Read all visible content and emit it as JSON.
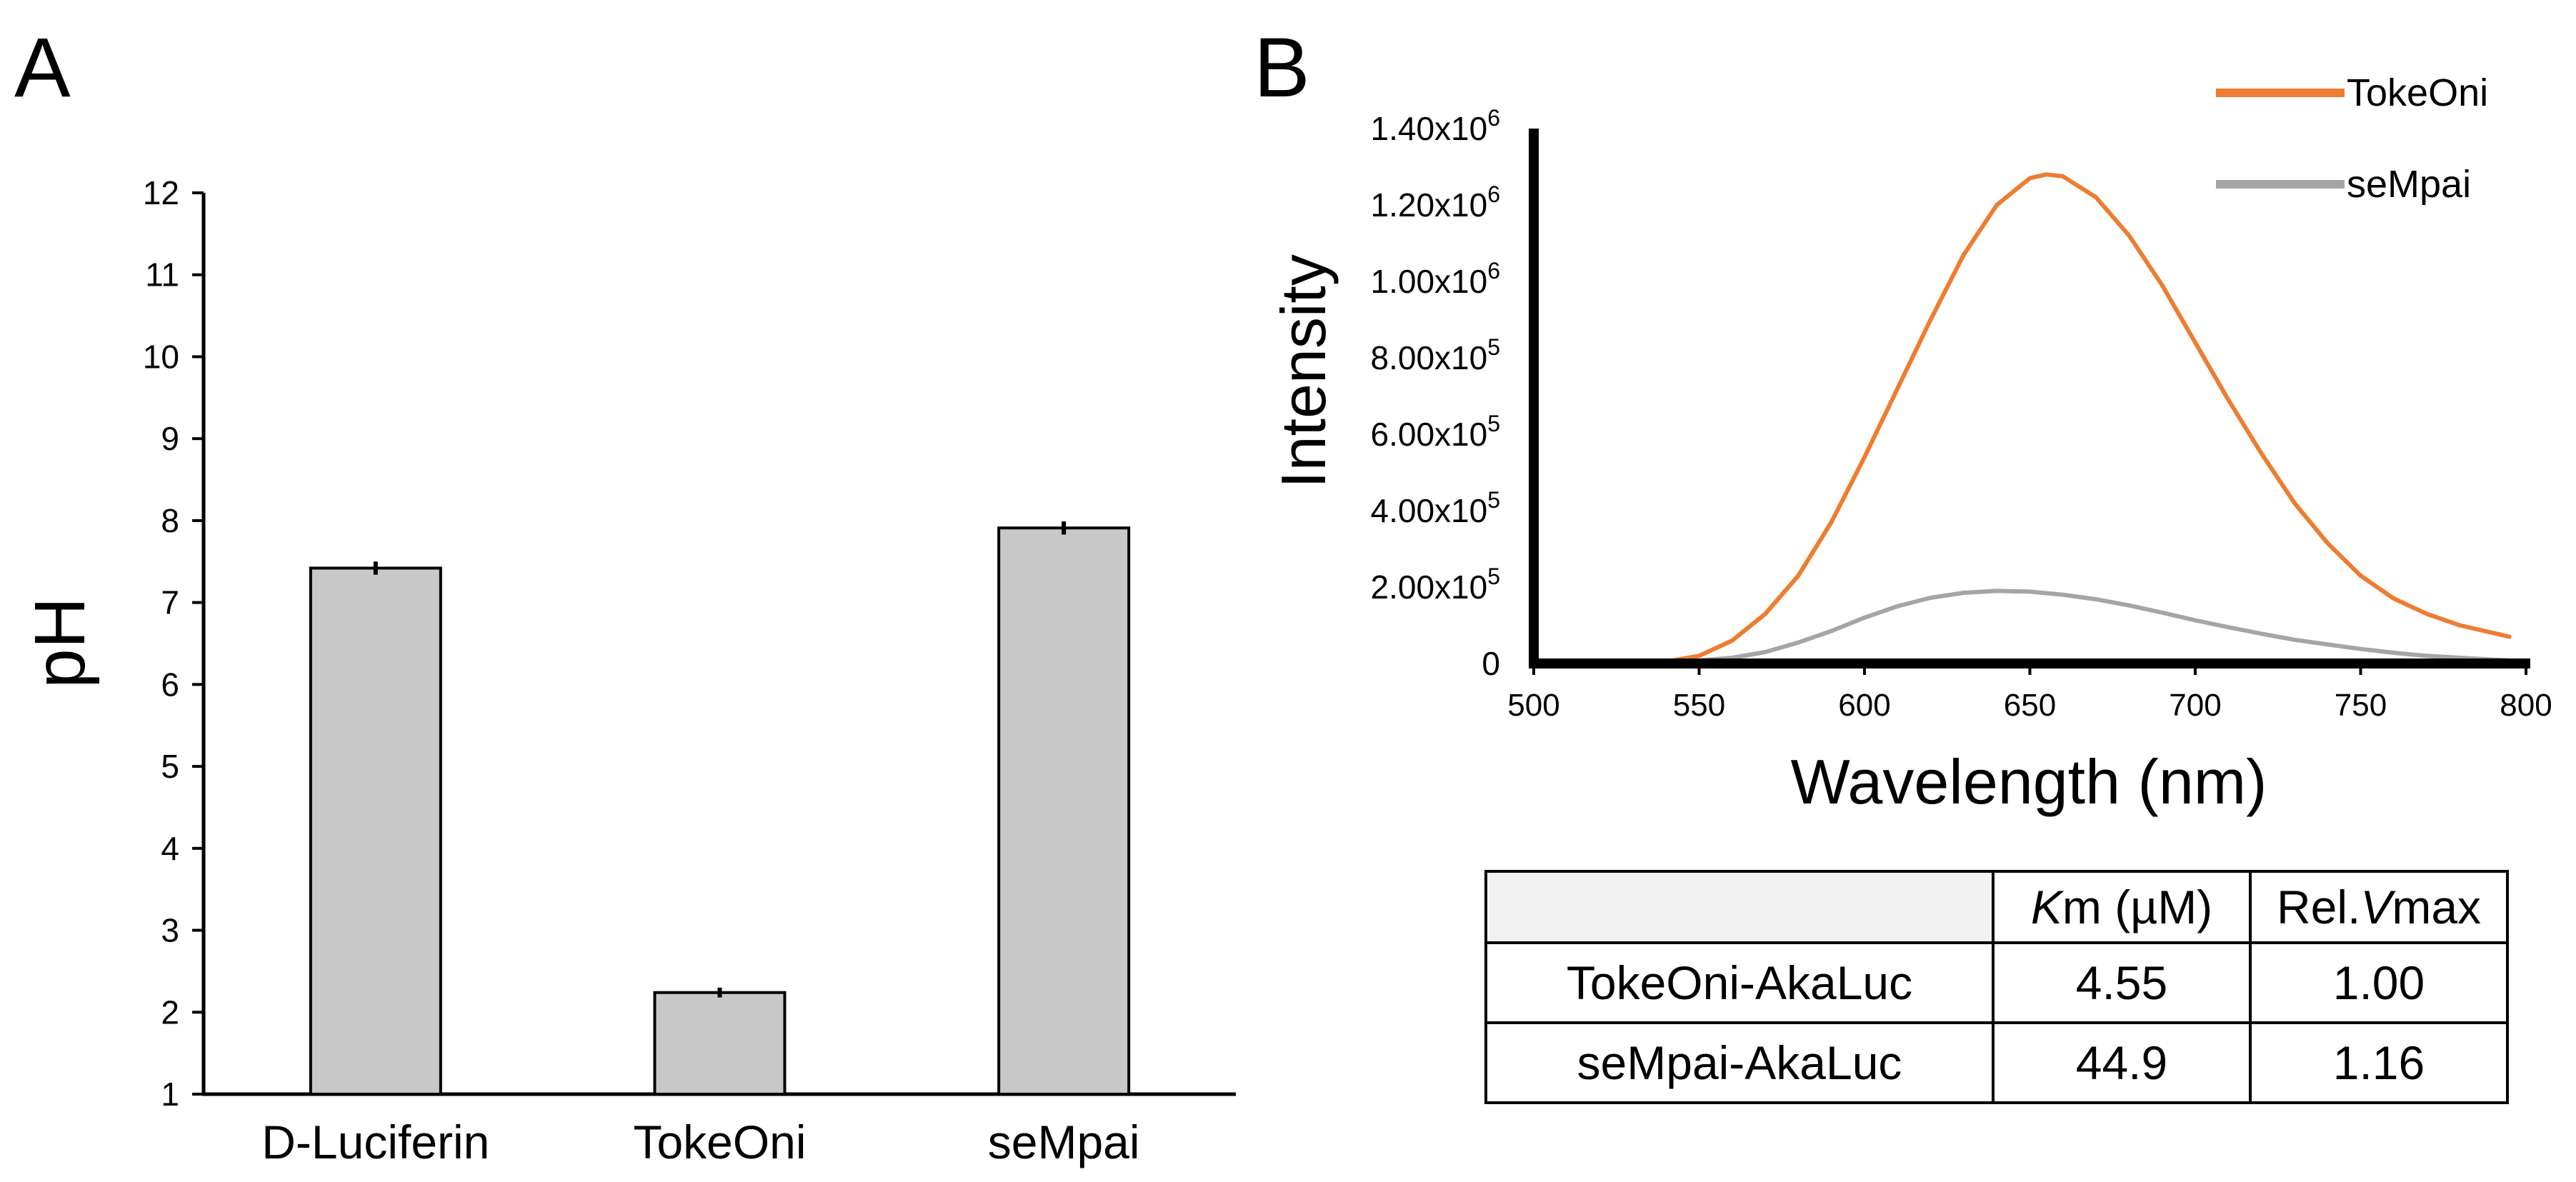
{
  "panel_labels": {
    "a": "A",
    "b": "B"
  },
  "colors": {
    "tokeoni": "#ED7D31",
    "sempai": "#A5A5A5",
    "bar_fill": "#c8c8c8",
    "axis": "#000000"
  },
  "chart_data": [
    {
      "id": "panel-a",
      "type": "bar",
      "title": "",
      "xlabel": "",
      "ylabel": "pH",
      "ylim": [
        1,
        12
      ],
      "yticks": [
        "1",
        "2",
        "3",
        "4",
        "5",
        "6",
        "7",
        "8",
        "9",
        "10",
        "11",
        "12"
      ],
      "categories": [
        "D-Luciferin",
        "TokeOni",
        "seMpai"
      ],
      "values": [
        7.42,
        2.24,
        7.91
      ],
      "errors": [
        0.08,
        0.06,
        0.08
      ],
      "grid": false
    },
    {
      "id": "panel-b",
      "type": "line",
      "title": "",
      "xlabel": "Wavelength (nm)",
      "ylabel": "Intensity",
      "xlim": [
        500,
        800
      ],
      "ylim": [
        0,
        1400000
      ],
      "xticks": [
        "500",
        "550",
        "600",
        "650",
        "700",
        "750",
        "800"
      ],
      "yticks": [
        {
          "base": "0",
          "exp": ""
        },
        {
          "base": "2.00x10",
          "exp": "5"
        },
        {
          "base": "4.00x10",
          "exp": "5"
        },
        {
          "base": "6.00x10",
          "exp": "5"
        },
        {
          "base": "8.00x10",
          "exp": "5"
        },
        {
          "base": "1.00x10",
          "exp": "6"
        },
        {
          "base": "1.20x10",
          "exp": "6"
        },
        {
          "base": "1.40x10",
          "exp": "6"
        }
      ],
      "legend_position": "top-right",
      "grid": false,
      "series": [
        {
          "name": "TokeOni",
          "color": "#ED7D31",
          "x": [
            500,
            520,
            540,
            550,
            560,
            570,
            580,
            590,
            600,
            610,
            620,
            630,
            640,
            650,
            655,
            660,
            670,
            680,
            690,
            700,
            710,
            720,
            730,
            740,
            750,
            760,
            770,
            780,
            790,
            795
          ],
          "y": [
            0,
            0,
            5000,
            20000,
            60000,
            130000,
            230000,
            370000,
            540000,
            720000,
            900000,
            1070000,
            1200000,
            1270000,
            1280000,
            1275000,
            1220000,
            1120000,
            990000,
            840000,
            690000,
            550000,
            420000,
            315000,
            230000,
            170000,
            130000,
            100000,
            80000,
            70000
          ]
        },
        {
          "name": "seMpai",
          "color": "#A5A5A5",
          "x": [
            500,
            520,
            540,
            550,
            560,
            570,
            580,
            590,
            600,
            610,
            620,
            630,
            640,
            650,
            660,
            670,
            680,
            690,
            700,
            710,
            720,
            730,
            740,
            750,
            760,
            770,
            780,
            790,
            795
          ],
          "y": [
            5000,
            5000,
            5000,
            8000,
            15000,
            30000,
            55000,
            85000,
            120000,
            150000,
            172000,
            185000,
            190000,
            188000,
            180000,
            168000,
            152000,
            133000,
            113000,
            95000,
            78000,
            62000,
            50000,
            38000,
            28000,
            20000,
            15000,
            10000,
            8000
          ]
        }
      ]
    }
  ],
  "table": {
    "headers": [
      {
        "italic": "",
        "rest": ""
      },
      {
        "italic": "K",
        "rest": "m (µM)"
      },
      {
        "pre": "Rel.",
        "italic": "V",
        "rest": "max"
      }
    ],
    "rows": [
      {
        "name": "TokeOni-AkaLuc",
        "km": "4.55",
        "vmax": "1.00"
      },
      {
        "name": "seMpai-AkaLuc",
        "km": "44.9",
        "vmax": "1.16"
      }
    ]
  }
}
